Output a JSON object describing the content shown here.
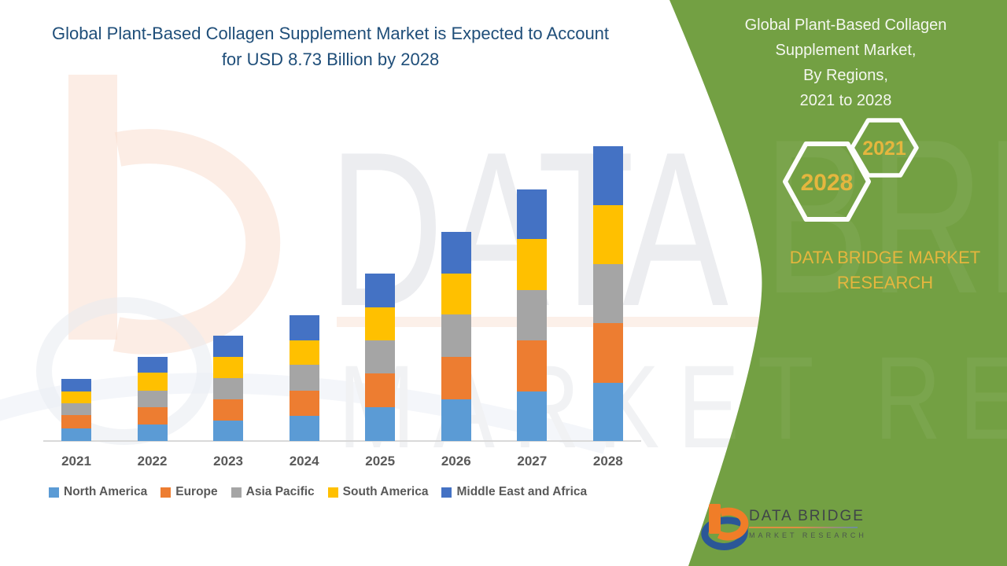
{
  "main_title": {
    "line1": "Global Plant-Based Collagen Supplement Market is Expected to Account",
    "line2": "for USD 8.73 Billion by 2028"
  },
  "side_panel": {
    "title_lines": [
      "Global Plant-Based Collagen",
      "Supplement Market,",
      "By Regions,",
      "2021 to 2028"
    ],
    "hexagon_small_label": "2021",
    "hexagon_large_label": "2028",
    "brand_line1": "DATA BRIDGE MARKET",
    "brand_line2": "RESEARCH",
    "panel_color": "#73A043",
    "gold_color": "#E5B63E",
    "text_color": "#F4F7EF"
  },
  "logo": {
    "name": "DATA BRIDGE",
    "tagline": "MARKET RESEARCH"
  },
  "watermark": {
    "row1": "DATA BRIDGE",
    "row2": "MARKET RESEARCH"
  },
  "chart_data": {
    "type": "bar",
    "stacked": true,
    "title": "Global Plant-Based Collagen Supplement Market, By Regions, 2021 to 2028",
    "unit": "USD Billion",
    "categories": [
      "2021",
      "2022",
      "2023",
      "2024",
      "2025",
      "2026",
      "2027",
      "2028"
    ],
    "series": [
      {
        "name": "North America",
        "color": "#5B9BD5",
        "values": [
          0.38,
          0.5,
          0.61,
          0.74,
          0.99,
          1.23,
          1.46,
          1.73
        ]
      },
      {
        "name": "Europe",
        "color": "#ED7D31",
        "values": [
          0.38,
          0.49,
          0.63,
          0.75,
          1.01,
          1.26,
          1.51,
          1.76
        ]
      },
      {
        "name": "Asia Pacific",
        "color": "#A5A5A5",
        "values": [
          0.36,
          0.5,
          0.62,
          0.76,
          0.97,
          1.26,
          1.51,
          1.75
        ]
      },
      {
        "name": "South America",
        "color": "#FFC000",
        "values": [
          0.35,
          0.53,
          0.62,
          0.74,
          0.99,
          1.21,
          1.51,
          1.75
        ]
      },
      {
        "name": "Middle East and Africa",
        "color": "#4472C4",
        "values": [
          0.38,
          0.47,
          0.64,
          0.74,
          1.01,
          1.24,
          1.46,
          1.74
        ]
      }
    ],
    "totals": [
      1.85,
      2.49,
      3.12,
      3.73,
      4.97,
      6.2,
      7.45,
      8.73
    ],
    "ylim": [
      0,
      8.73
    ],
    "grid": false,
    "legend_position": "bottom",
    "axis_color": "#D9D9D9",
    "label_color": "#595959"
  }
}
